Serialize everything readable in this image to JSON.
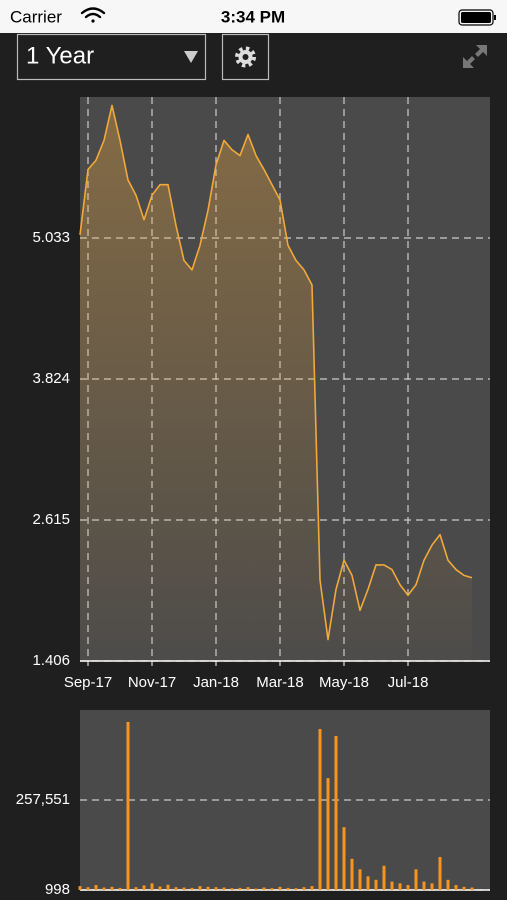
{
  "status_bar": {
    "carrier": "Carrier",
    "time": "3:34 PM"
  },
  "toolbar": {
    "range": "1 Year"
  },
  "chart_data": [
    {
      "type": "area",
      "color": "#f2a93b",
      "grid": true,
      "categories": [
        null,
        "Sep-17",
        null,
        null,
        null,
        null,
        null,
        null,
        null,
        "Nov-17",
        null,
        null,
        null,
        null,
        null,
        null,
        null,
        "Jan-18",
        null,
        null,
        null,
        null,
        null,
        null,
        null,
        "Mar-18",
        null,
        null,
        null,
        null,
        null,
        null,
        null,
        "May-18",
        null,
        null,
        null,
        null,
        null,
        null,
        null,
        "Jul-18",
        null,
        null,
        null,
        null,
        null,
        null,
        null,
        null
      ],
      "values": [
        5.06,
        5.62,
        5.7,
        5.87,
        6.17,
        5.87,
        5.53,
        5.4,
        5.19,
        5.4,
        5.49,
        5.49,
        5.14,
        4.84,
        4.76,
        4.97,
        5.27,
        5.66,
        5.87,
        5.79,
        5.74,
        5.92,
        5.74,
        5.62,
        5.49,
        5.36,
        4.97,
        4.84,
        4.76,
        4.63,
        2.1,
        1.59,
        2.02,
        2.27,
        2.14,
        1.84,
        2.02,
        2.23,
        2.23,
        2.19,
        2.06,
        1.97,
        2.06,
        2.27,
        2.4,
        2.49,
        2.27,
        2.19,
        2.14,
        2.12
      ],
      "ylim": [
        1.406,
        6.242
      ],
      "yticks": [
        1.406,
        2.615,
        3.824,
        5.033
      ]
    },
    {
      "type": "bar",
      "color": "#f7941d",
      "grid": true,
      "values": [
        12000,
        9000,
        15000,
        8000,
        10000,
        7000,
        480000,
        9000,
        14000,
        20000,
        11000,
        16000,
        9000,
        8000,
        7000,
        12000,
        10000,
        9000,
        8000,
        6000,
        7000,
        9000,
        5000,
        8000,
        6000,
        10000,
        7000,
        6000,
        9000,
        12000,
        460000,
        320000,
        440000,
        180000,
        90000,
        60000,
        40000,
        30000,
        70000,
        25000,
        20000,
        15000,
        60000,
        25000,
        20000,
        95000,
        30000,
        15000,
        10000,
        8000
      ],
      "ylim": [
        998,
        514104
      ],
      "yticks": [
        998,
        {
          "value": 257551,
          "label": "257,551"
        }
      ]
    }
  ]
}
